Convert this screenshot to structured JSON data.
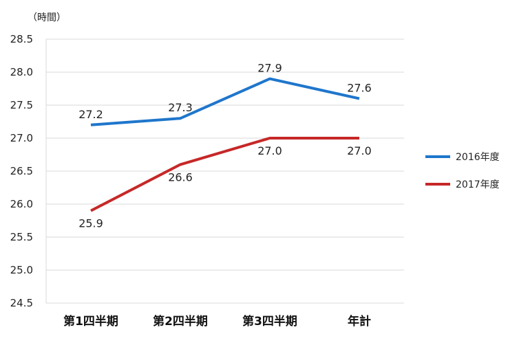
{
  "chart_data": {
    "type": "line",
    "ylabel": "（時間）",
    "categories": [
      "第1四半期",
      "第2四半期",
      "第3四半期",
      "年計"
    ],
    "ylim": [
      24.5,
      28.5
    ],
    "yticks": [
      "28.5",
      "28.0",
      "27.5",
      "27.0",
      "26.5",
      "26.0",
      "25.5",
      "25.0",
      "24.5"
    ],
    "grid": true,
    "legend_position": "right",
    "series": [
      {
        "name": "2016年度",
        "color": "#1f76cc",
        "values": [
          27.2,
          27.3,
          27.9,
          27.6
        ],
        "labels": [
          "27.2",
          "27.3",
          "27.9",
          "27.6"
        ]
      },
      {
        "name": "2017年度",
        "color": "#c62828",
        "values": [
          25.9,
          26.6,
          27.0,
          27.0
        ],
        "labels": [
          "25.9",
          "26.6",
          "27.0",
          "27.0"
        ]
      }
    ]
  }
}
